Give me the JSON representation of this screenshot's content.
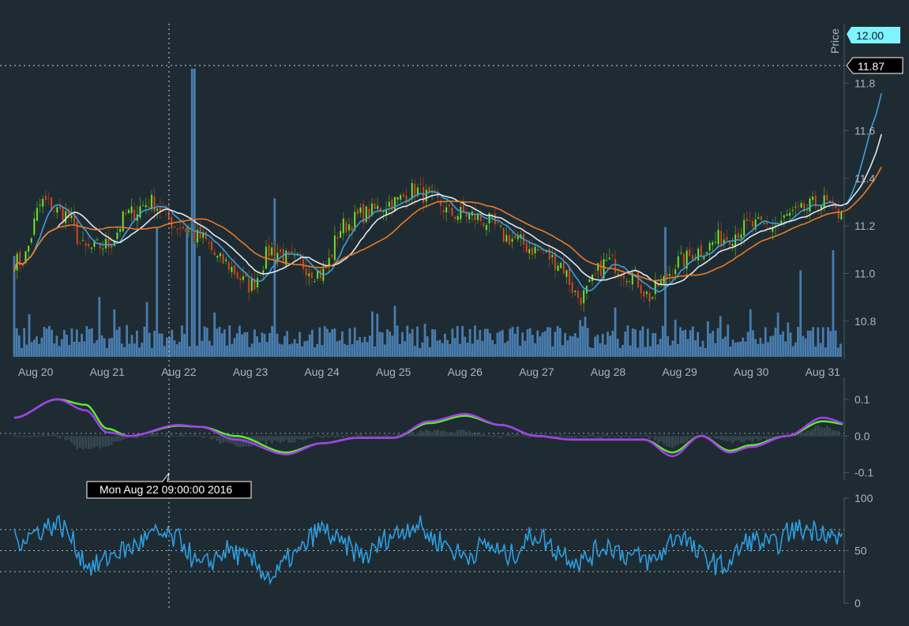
{
  "chart_data": [
    {
      "type": "candlestick",
      "panel": "price",
      "ylabel": "Price",
      "ylim": [
        10.64,
        12.05
      ],
      "y_ticks": [
        "10.8",
        "11.0",
        "11.2",
        "11.4",
        "11.6",
        "11.8"
      ],
      "x_ticks": [
        "Aug 20",
        "Aug 21",
        "Aug 22",
        "Aug 23",
        "Aug 24",
        "Aug 25",
        "Aug 26",
        "Aug 27",
        "Aug 28",
        "Aug 29",
        "Aug 30",
        "Aug 31"
      ],
      "last_price_label": "12.00",
      "crosshair_price_label": "11.87",
      "close_anchors": {
        "x_day": [
          -0.2,
          0.1,
          0.4,
          0.7,
          1.0,
          1.3,
          1.6,
          2.0,
          2.3,
          2.6,
          3.0,
          3.3,
          3.6,
          4.0,
          4.3,
          4.6,
          5.0,
          5.3,
          5.6,
          5.8,
          6.0,
          6.3,
          6.6,
          7.0,
          7.3,
          7.6,
          8.0,
          8.3,
          8.6,
          8.7,
          9.0,
          9.3,
          9.6,
          10.0,
          10.3,
          10.6,
          11.0,
          11.2,
          11.5,
          11.7,
          11.85
        ],
        "price": [
          11.05,
          11.3,
          11.25,
          11.1,
          11.12,
          11.25,
          11.3,
          11.2,
          11.15,
          11.05,
          10.95,
          11.1,
          11.05,
          11.0,
          11.2,
          11.25,
          11.3,
          11.35,
          11.3,
          11.25,
          11.25,
          11.22,
          11.15,
          11.1,
          11.05,
          10.9,
          11.05,
          11.0,
          10.9,
          10.95,
          11.05,
          11.1,
          11.15,
          11.2,
          11.2,
          11.25,
          11.3,
          11.25,
          11.55,
          11.75,
          12.0
        ]
      },
      "bar_interval_days": 0.04,
      "series": [
        {
          "name": "candles",
          "up_color": "#79f03c",
          "down_color": "#d4502a"
        },
        {
          "name": "ma_fast",
          "color": "#3a9fdc"
        },
        {
          "name": "ma_mid",
          "color": "#dfe8ee"
        },
        {
          "name": "ma_slow",
          "color": "#e87a27"
        }
      ]
    },
    {
      "type": "bar",
      "panel": "volume",
      "color": "#4c86bd",
      "spikes": [
        {
          "x_day": -0.3,
          "value": 0.35
        },
        {
          "x_day": 1.7,
          "value": 0.45
        },
        {
          "x_day": 2.1,
          "value": 0.45
        },
        {
          "x_day": 2.2,
          "value": 1.0
        },
        {
          "x_day": 2.3,
          "value": 0.35
        },
        {
          "x_day": 3.35,
          "value": 0.55
        },
        {
          "x_day": 8.8,
          "value": 0.45
        },
        {
          "x_day": 10.7,
          "value": 0.3
        },
        {
          "x_day": 11.15,
          "value": 0.37
        },
        {
          "x_day": 11.8,
          "value": 0.2
        }
      ]
    },
    {
      "type": "line",
      "panel": "macd",
      "ylim": [
        -0.12,
        0.16
      ],
      "y_ticks": [
        "0.1",
        "0.0",
        "-0.1"
      ],
      "anchors": {
        "x_day": [
          -0.3,
          0.3,
          0.7,
          1.0,
          1.3,
          2.0,
          2.3,
          2.8,
          3.5,
          4.0,
          4.5,
          5.0,
          5.5,
          6.0,
          6.5,
          7.0,
          7.5,
          8.0,
          8.5,
          8.9,
          9.3,
          9.7,
          10.0,
          10.5,
          11.0,
          11.4,
          11.7,
          11.85
        ],
        "macd": [
          0.05,
          0.1,
          0.07,
          0.01,
          0.0,
          0.03,
          0.025,
          -0.01,
          -0.05,
          -0.02,
          -0.005,
          -0.005,
          0.04,
          0.06,
          0.03,
          0.0,
          -0.01,
          -0.01,
          -0.01,
          -0.055,
          0.0,
          -0.045,
          -0.03,
          0.0,
          0.05,
          0.03,
          0.06,
          0.15
        ],
        "signal": [
          0.05,
          0.1,
          0.085,
          0.02,
          0.0,
          0.028,
          0.025,
          0.0,
          -0.045,
          -0.02,
          -0.005,
          -0.005,
          0.035,
          0.055,
          0.03,
          0.0,
          -0.01,
          -0.01,
          -0.01,
          -0.045,
          0.0,
          -0.04,
          -0.025,
          0.0,
          0.04,
          0.03,
          0.05,
          0.1
        ]
      },
      "series": [
        {
          "name": "macd",
          "color": "#a63cf0"
        },
        {
          "name": "signal",
          "color": "#5bea2c"
        },
        {
          "name": "histogram",
          "color": "#36464f"
        }
      ]
    },
    {
      "type": "line",
      "panel": "rsi",
      "ylim": [
        0,
        100
      ],
      "y_ticks": [
        "100",
        "50",
        "0"
      ],
      "reference_levels": [
        70,
        50,
        30
      ],
      "anchors": {
        "x_day": [
          -0.3,
          0.3,
          0.8,
          1.2,
          1.7,
          2.0,
          2.3,
          2.7,
          3.0,
          3.3,
          3.6,
          4.0,
          4.3,
          4.6,
          5.0,
          5.3,
          5.6,
          6.0,
          6.3,
          6.6,
          7.0,
          7.3,
          7.6,
          8.0,
          8.3,
          8.6,
          9.0,
          9.3,
          9.6,
          10.0,
          10.3,
          10.6,
          11.0,
          11.2,
          11.5,
          11.7,
          11.85
        ],
        "value": [
          60,
          75,
          35,
          50,
          65,
          60,
          35,
          50,
          40,
          25,
          45,
          70,
          55,
          45,
          65,
          75,
          60,
          45,
          55,
          45,
          65,
          50,
          40,
          55,
          45,
          40,
          65,
          45,
          35,
          60,
          55,
          70,
          70,
          60,
          85,
          55,
          80
        ]
      },
      "series": [
        {
          "name": "rsi",
          "color": "#2d9ee0"
        }
      ]
    }
  ],
  "crosshair": {
    "label": "Mon Aug 22 09:00:00 2016",
    "x_day": 2.0
  }
}
